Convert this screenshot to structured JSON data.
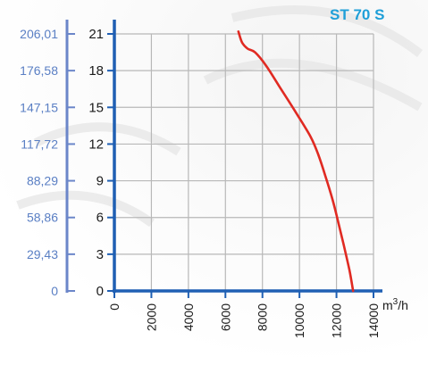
{
  "chart_data": {
    "type": "line",
    "title": "ST 70 S",
    "x_unit": {
      "base": "m",
      "sup": "3",
      "rest": "/h"
    },
    "xlim": [
      0,
      14000
    ],
    "x_ticks": [
      0,
      2000,
      4000,
      6000,
      8000,
      10000,
      12000,
      14000
    ],
    "x_tick_labels": [
      "0",
      "2000",
      "4000",
      "6000",
      "8000",
      "10000",
      "12000",
      "14000"
    ],
    "y_right_lim": [
      0,
      21
    ],
    "y_right_ticks": [
      0,
      3,
      6,
      9,
      12,
      15,
      18,
      21
    ],
    "y_right_tick_labels": [
      "0",
      "3",
      "6",
      "9",
      "12",
      "15",
      "18",
      "21"
    ],
    "y_left_ticks": [
      0,
      29.43,
      58.86,
      88.29,
      117.72,
      147.15,
      176.58,
      206.01
    ],
    "y_left_tick_labels": [
      "0",
      "29,43",
      "58,86",
      "88,29",
      "117,72",
      "147,15",
      "176,58",
      "206,01"
    ],
    "grid": true,
    "line_color": "#e02a22",
    "series": [
      {
        "x": [
          6700,
          6900,
          7200,
          7600,
          8200,
          9000,
          9800,
          10600,
          11000,
          11400,
          11800,
          12100,
          12400,
          12700,
          12900
        ],
        "y": [
          21.2,
          20.3,
          19.8,
          19.5,
          18.4,
          16.5,
          14.6,
          12.6,
          11.2,
          9.4,
          7.4,
          5.6,
          3.7,
          1.7,
          0
        ]
      }
    ]
  }
}
